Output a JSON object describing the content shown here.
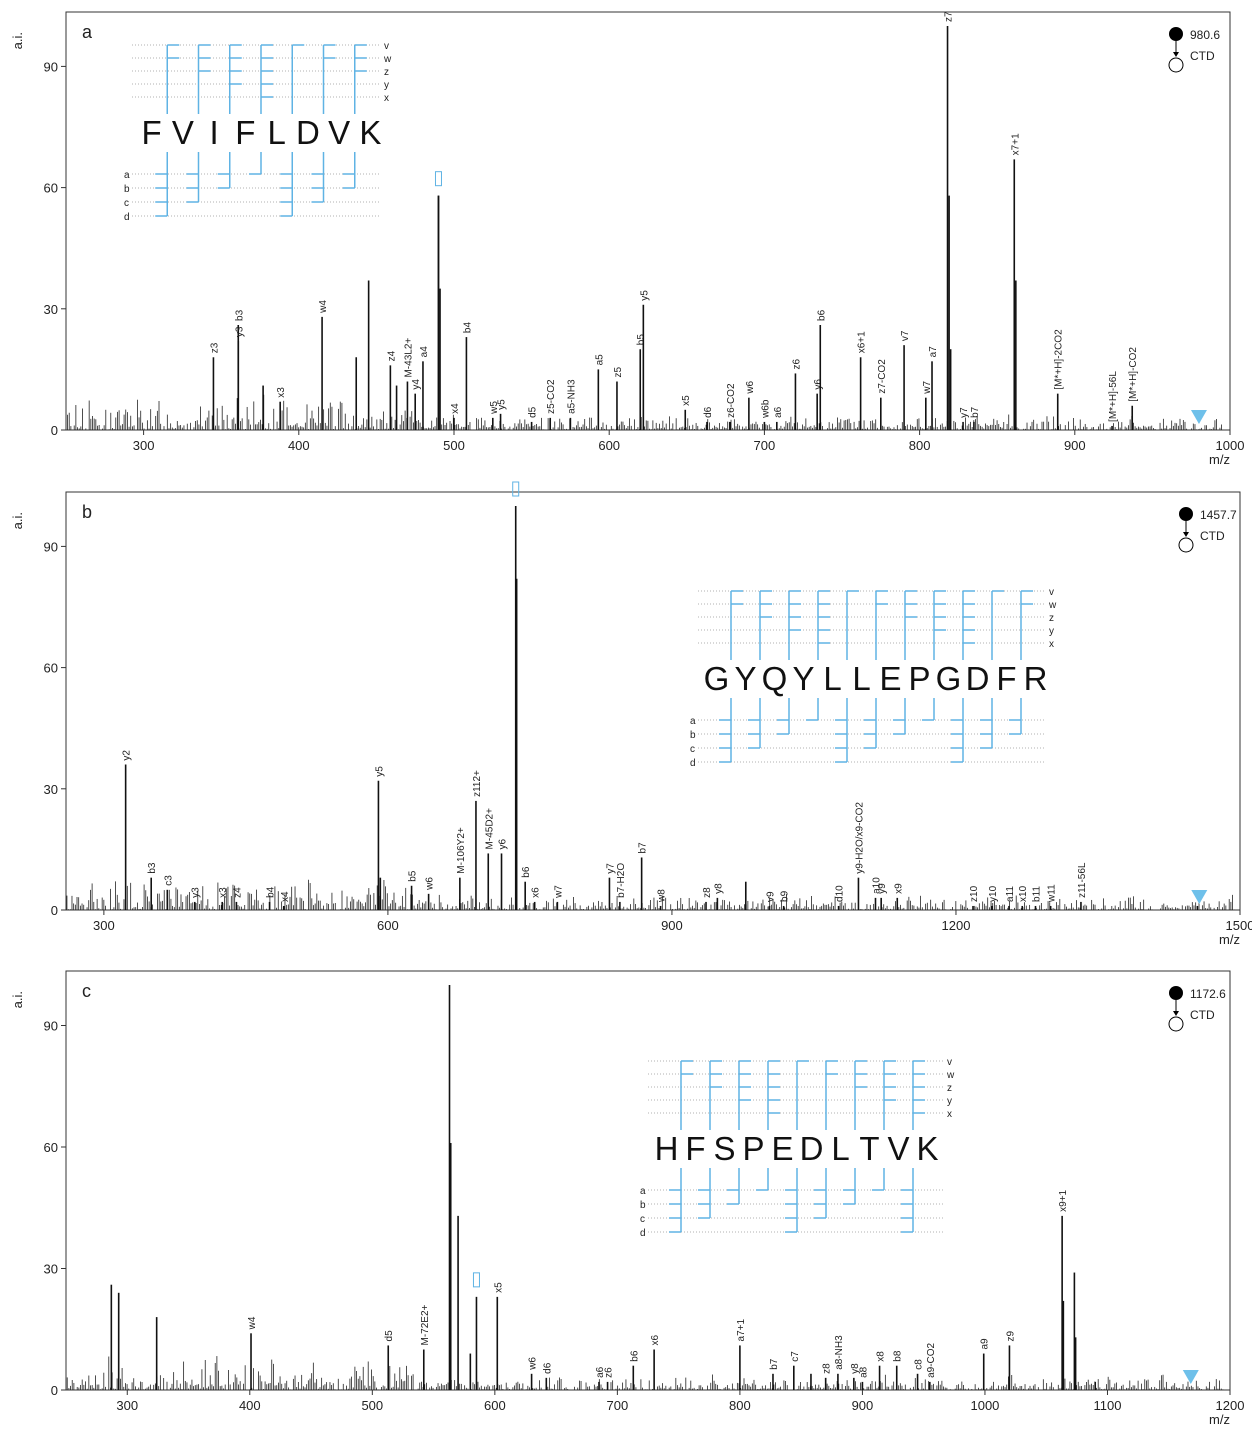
{
  "colors": {
    "fragment": "#5fb3e4",
    "peak": "#111111",
    "precursor_marker": "#6ec0ea"
  },
  "chart_data": [
    {
      "type": "bar",
      "panel_label": "a",
      "ylabel": "a.i.",
      "xlabel": "m/z",
      "xlim": [
        250,
        1000
      ],
      "ylim": [
        0,
        100
      ],
      "xticks": [
        300,
        400,
        500,
        600,
        700,
        800,
        900,
        1000
      ],
      "yticks": [
        0,
        30,
        60,
        90
      ],
      "precursor": {
        "mz": "980.6",
        "method": "CTD",
        "marker_mz": 980
      },
      "sequence": [
        "F",
        "V",
        "I",
        "F",
        "L",
        "D",
        "V",
        "K"
      ],
      "ion_types_top": [
        "v",
        "w",
        "z",
        "y",
        "x"
      ],
      "ion_types_bottom": [
        "a",
        "b",
        "c",
        "d"
      ],
      "peaks": [
        {
          "x": 345,
          "y": 18,
          "label": "z3"
        },
        {
          "x": 361,
          "y": 26,
          "label": "b3"
        },
        {
          "x": 361,
          "y": 22,
          "label": "y3"
        },
        {
          "x": 377,
          "y": 11
        },
        {
          "x": 388,
          "y": 7,
          "label": "x3"
        },
        {
          "x": 415,
          "y": 28,
          "label": "w4"
        },
        {
          "x": 437,
          "y": 18
        },
        {
          "x": 445,
          "y": 37
        },
        {
          "x": 459,
          "y": 16,
          "label": "z4"
        },
        {
          "x": 463,
          "y": 11
        },
        {
          "x": 470,
          "y": 12,
          "label": "M-43L2+"
        },
        {
          "x": 475,
          "y": 9,
          "label": "y4"
        },
        {
          "x": 480,
          "y": 17,
          "label": "a4"
        },
        {
          "x": 490,
          "y": 58
        },
        {
          "x": 490,
          "y": 58,
          "label": "□"
        },
        {
          "x": 491,
          "y": 35
        },
        {
          "x": 500,
          "y": 3,
          "label": "x4"
        },
        {
          "x": 508,
          "y": 23,
          "label": "b4"
        },
        {
          "x": 525,
          "y": 3,
          "label": "w5"
        },
        {
          "x": 530,
          "y": 4,
          "label": "y5"
        },
        {
          "x": 550,
          "y": 2,
          "label": "d5"
        },
        {
          "x": 562,
          "y": 3,
          "label": "z5-CO2"
        },
        {
          "x": 575,
          "y": 3,
          "label": "a5-NH3"
        },
        {
          "x": 593,
          "y": 15,
          "label": "a5"
        },
        {
          "x": 605,
          "y": 12,
          "label": "z5"
        },
        {
          "x": 620,
          "y": 20,
          "label": "b5"
        },
        {
          "x": 622,
          "y": 31,
          "label": "y5"
        },
        {
          "x": 649,
          "y": 5,
          "label": "x5"
        },
        {
          "x": 663,
          "y": 2,
          "label": "d6"
        },
        {
          "x": 678,
          "y": 2,
          "label": "z6-CO2"
        },
        {
          "x": 690,
          "y": 8,
          "label": "w6"
        },
        {
          "x": 700,
          "y": 2,
          "label": "w6b"
        },
        {
          "x": 708,
          "y": 2,
          "label": "a6"
        },
        {
          "x": 720,
          "y": 14,
          "label": "z6"
        },
        {
          "x": 734,
          "y": 9,
          "label": "y6"
        },
        {
          "x": 736,
          "y": 26,
          "label": "b6"
        },
        {
          "x": 762,
          "y": 18,
          "label": "x6+1"
        },
        {
          "x": 775,
          "y": 8,
          "label": "z7-CO2"
        },
        {
          "x": 790,
          "y": 21,
          "label": "v7"
        },
        {
          "x": 804,
          "y": 8,
          "label": "w7"
        },
        {
          "x": 808,
          "y": 17,
          "label": "a7"
        },
        {
          "x": 818,
          "y": 100,
          "label": "z7"
        },
        {
          "x": 819,
          "y": 58
        },
        {
          "x": 820,
          "y": 20
        },
        {
          "x": 828,
          "y": 2,
          "label": "y7"
        },
        {
          "x": 835,
          "y": 2,
          "label": "b7"
        },
        {
          "x": 861,
          "y": 67,
          "label": "x7+1"
        },
        {
          "x": 862,
          "y": 37
        },
        {
          "x": 889,
          "y": 9,
          "label": "[M*+H]-2CO2"
        },
        {
          "x": 924,
          "y": 1,
          "label": "[M*+H]-56L"
        },
        {
          "x": 937,
          "y": 6,
          "label": "[M*+H]-CO2"
        }
      ]
    },
    {
      "type": "bar",
      "panel_label": "b",
      "ylabel": "a.i.",
      "xlabel": "m/z",
      "xlim": [
        260,
        1500
      ],
      "ylim": [
        0,
        100
      ],
      "xticks": [
        300,
        600,
        900,
        1200,
        1500
      ],
      "yticks": [
        0,
        30,
        60,
        90
      ],
      "precursor": {
        "mz": "1457.7",
        "method": "CTD",
        "marker_mz": 1457
      },
      "sequence": [
        "G",
        "Y",
        "Q",
        "Y",
        "L",
        "L",
        "E",
        "P",
        "G",
        "D",
        "F",
        "R"
      ],
      "ion_types_top": [
        "v",
        "w",
        "z",
        "y",
        "x"
      ],
      "ion_types_bottom": [
        "a",
        "b",
        "c",
        "d"
      ],
      "peaks": [
        {
          "x": 323,
          "y": 36,
          "label": "y2"
        },
        {
          "x": 350,
          "y": 8,
          "label": "b3"
        },
        {
          "x": 367,
          "y": 5,
          "label": "c3"
        },
        {
          "x": 396,
          "y": 2,
          "label": "y3"
        },
        {
          "x": 425,
          "y": 2,
          "label": "x3"
        },
        {
          "x": 440,
          "y": 2,
          "label": "z4"
        },
        {
          "x": 475,
          "y": 2,
          "label": "b4"
        },
        {
          "x": 490,
          "y": 1,
          "label": "x4"
        },
        {
          "x": 590,
          "y": 32,
          "label": "y5"
        },
        {
          "x": 592,
          "y": 8
        },
        {
          "x": 625,
          "y": 6,
          "label": "b5"
        },
        {
          "x": 643,
          "y": 4,
          "label": "w6"
        },
        {
          "x": 676,
          "y": 8,
          "label": "M-106Y2+"
        },
        {
          "x": 693,
          "y": 27,
          "label": "z112+"
        },
        {
          "x": 706,
          "y": 14,
          "label": "M-45D2+"
        },
        {
          "x": 720,
          "y": 14,
          "label": "y6"
        },
        {
          "x": 735,
          "y": 100,
          "label": "□"
        },
        {
          "x": 736,
          "y": 82
        },
        {
          "x": 745,
          "y": 7,
          "label": "b6"
        },
        {
          "x": 755,
          "y": 2,
          "label": "x6"
        },
        {
          "x": 779,
          "y": 2,
          "label": "w7"
        },
        {
          "x": 834,
          "y": 8,
          "label": "y7"
        },
        {
          "x": 845,
          "y": 2,
          "label": "b7-H2O"
        },
        {
          "x": 868,
          "y": 13,
          "label": "b7"
        },
        {
          "x": 888,
          "y": 1,
          "label": "w8"
        },
        {
          "x": 936,
          "y": 2,
          "label": "z8"
        },
        {
          "x": 948,
          "y": 3,
          "label": "y8"
        },
        {
          "x": 978,
          "y": 7
        },
        {
          "x": 1003,
          "y": 1,
          "label": "v9"
        },
        {
          "x": 1018,
          "y": 1,
          "label": "b9"
        },
        {
          "x": 1076,
          "y": 1,
          "label": "d10"
        },
        {
          "x": 1097,
          "y": 8,
          "label": "y9-H2O/x9-CO2"
        },
        {
          "x": 1115,
          "y": 3,
          "label": "a10"
        },
        {
          "x": 1121,
          "y": 3,
          "label": "y9"
        },
        {
          "x": 1138,
          "y": 3,
          "label": "x9"
        },
        {
          "x": 1218,
          "y": 1,
          "label": "z10"
        },
        {
          "x": 1238,
          "y": 1,
          "label": "y10"
        },
        {
          "x": 1256,
          "y": 1,
          "label": "a11"
        },
        {
          "x": 1270,
          "y": 1,
          "label": "x10"
        },
        {
          "x": 1284,
          "y": 1,
          "label": "b11"
        },
        {
          "x": 1300,
          "y": 1,
          "label": "w11"
        },
        {
          "x": 1332,
          "y": 2,
          "label": "z11-56L"
        },
        {
          "x": 1455,
          "y": 1
        }
      ]
    },
    {
      "type": "bar",
      "panel_label": "c",
      "ylabel": "a.i.",
      "xlabel": "m/z",
      "xlim": [
        250,
        1200
      ],
      "ylim": [
        0,
        100
      ],
      "xticks": [
        300,
        400,
        500,
        600,
        700,
        800,
        900,
        1000,
        1100,
        1200
      ],
      "yticks": [
        0,
        30,
        60,
        90
      ],
      "precursor": {
        "mz": "1172.6",
        "method": "CTD",
        "marker_mz": 1168
      },
      "sequence": [
        "H",
        "F",
        "S",
        "P",
        "E",
        "D",
        "L",
        "T",
        "V",
        "K"
      ],
      "ion_types_top": [
        "v",
        "w",
        "z",
        "y",
        "x"
      ],
      "ion_types_bottom": [
        "a",
        "b",
        "c",
        "d"
      ],
      "peaks": [
        {
          "x": 287,
          "y": 26
        },
        {
          "x": 293,
          "y": 24
        },
        {
          "x": 324,
          "y": 18
        },
        {
          "x": 401,
          "y": 14,
          "label": "w4"
        },
        {
          "x": 513,
          "y": 11,
          "label": "d5"
        },
        {
          "x": 542,
          "y": 10,
          "label": "M-72E2+"
        },
        {
          "x": 563,
          "y": 100
        },
        {
          "x": 564,
          "y": 61
        },
        {
          "x": 570,
          "y": 43
        },
        {
          "x": 580,
          "y": 9
        },
        {
          "x": 585,
          "y": 23,
          "label": "□"
        },
        {
          "x": 602,
          "y": 23,
          "label": "x5"
        },
        {
          "x": 630,
          "y": 4,
          "label": "w6"
        },
        {
          "x": 642,
          "y": 3,
          "label": "d6"
        },
        {
          "x": 685,
          "y": 2,
          "label": "a6"
        },
        {
          "x": 692,
          "y": 2,
          "label": "z6"
        },
        {
          "x": 713,
          "y": 6,
          "label": "b6"
        },
        {
          "x": 730,
          "y": 10,
          "label": "x6"
        },
        {
          "x": 800,
          "y": 11,
          "label": "a7+1"
        },
        {
          "x": 827,
          "y": 4,
          "label": "b7"
        },
        {
          "x": 844,
          "y": 6,
          "label": "c7"
        },
        {
          "x": 858,
          "y": 4
        },
        {
          "x": 870,
          "y": 3,
          "label": "z8"
        },
        {
          "x": 880,
          "y": 4,
          "label": "a8-NH3"
        },
        {
          "x": 893,
          "y": 3,
          "label": "y8"
        },
        {
          "x": 900,
          "y": 2,
          "label": "a8"
        },
        {
          "x": 914,
          "y": 6,
          "label": "x8"
        },
        {
          "x": 928,
          "y": 6,
          "label": "b8"
        },
        {
          "x": 945,
          "y": 4,
          "label": "c8"
        },
        {
          "x": 955,
          "y": 2,
          "label": "a9-CO2"
        },
        {
          "x": 999,
          "y": 9,
          "label": "a9"
        },
        {
          "x": 1020,
          "y": 11,
          "label": "z9"
        },
        {
          "x": 1063,
          "y": 43,
          "label": "x9+1"
        },
        {
          "x": 1064,
          "y": 22
        },
        {
          "x": 1073,
          "y": 29
        },
        {
          "x": 1074,
          "y": 13
        },
        {
          "x": 1090,
          "y": 2
        }
      ]
    }
  ]
}
